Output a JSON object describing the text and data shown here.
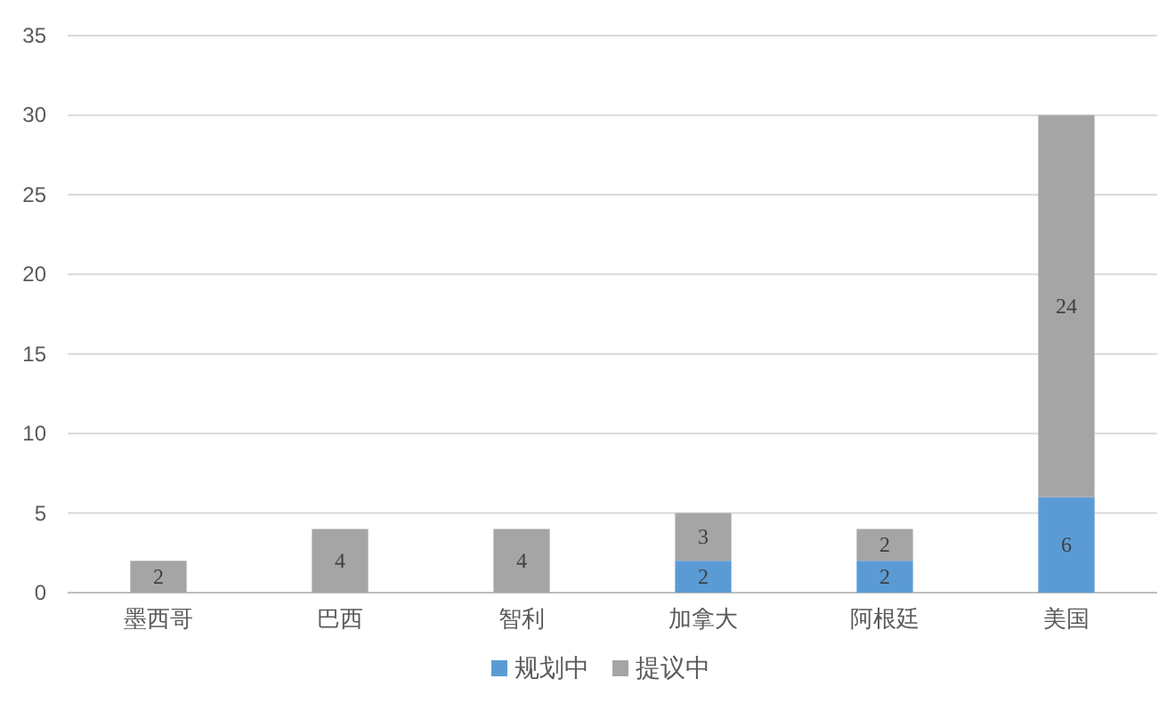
{
  "chart_data": {
    "type": "bar",
    "stacked": true,
    "categories": [
      "墨西哥",
      "巴西",
      "智利",
      "加拿大",
      "阿根廷",
      "美国"
    ],
    "series": [
      {
        "name": "规划中",
        "color": "#5b9bd5",
        "values": [
          null,
          null,
          null,
          2,
          2,
          6
        ]
      },
      {
        "name": "提议中",
        "color": "#a5a5a5",
        "values": [
          2,
          4,
          4,
          3,
          2,
          24
        ]
      }
    ],
    "ylim": [
      0,
      35
    ],
    "yticks": [
      0,
      5,
      10,
      15,
      20,
      25,
      30,
      35
    ],
    "grid": "y",
    "legend": "bottom",
    "data_labels": true
  }
}
